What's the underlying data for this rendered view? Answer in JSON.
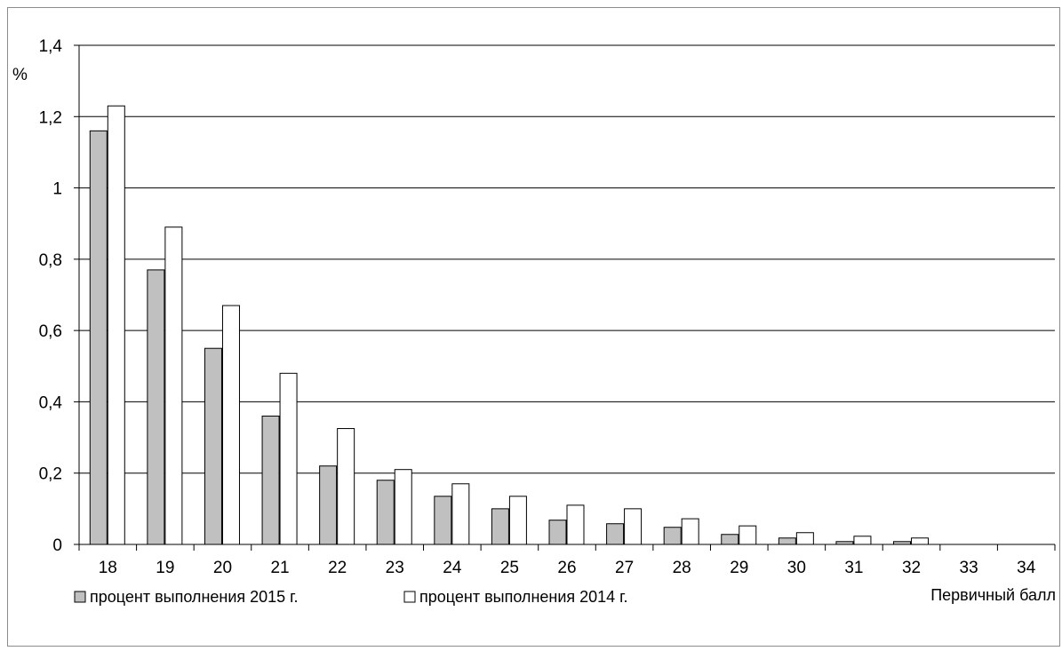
{
  "chart_data": {
    "type": "bar",
    "ylabel": "%",
    "xlabel": "Первичный балл",
    "ylim": [
      0,
      1.4
    ],
    "yticks": [
      "0",
      "0,2",
      "0,4",
      "0,6",
      "0,8",
      "1",
      "1,2",
      "1,4"
    ],
    "grid": true,
    "legend_position": "bottom-left",
    "categories": [
      "18",
      "19",
      "20",
      "21",
      "22",
      "23",
      "24",
      "25",
      "26",
      "27",
      "28",
      "29",
      "30",
      "31",
      "32",
      "33",
      "34"
    ],
    "series": [
      {
        "name": "процент выполнения 2015 г.",
        "color": "#c0c0c0",
        "values": [
          1.16,
          0.77,
          0.55,
          0.36,
          0.22,
          0.18,
          0.135,
          0.1,
          0.068,
          0.058,
          0.048,
          0.028,
          0.018,
          0.008,
          0.008,
          0,
          0
        ]
      },
      {
        "name": "процент выполнения 2014 г.",
        "color": "#ffffff",
        "values": [
          1.23,
          0.89,
          0.67,
          0.48,
          0.325,
          0.21,
          0.17,
          0.135,
          0.11,
          0.1,
          0.072,
          0.052,
          0.033,
          0.023,
          0.018,
          0,
          0
        ]
      }
    ]
  }
}
